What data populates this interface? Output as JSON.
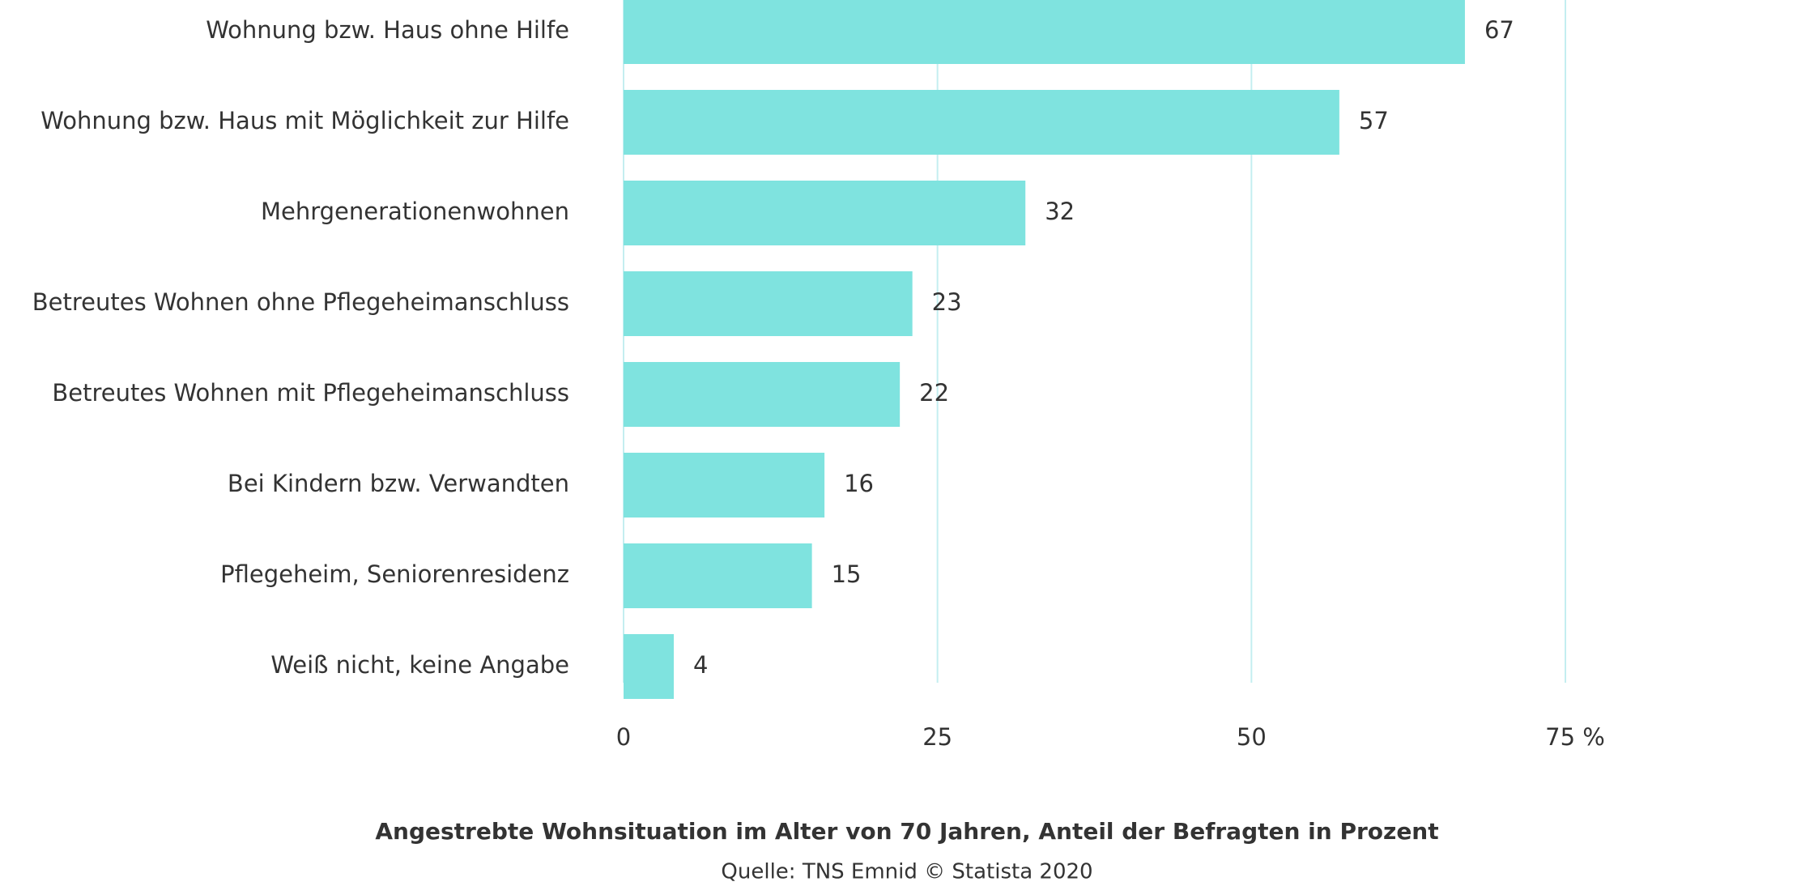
{
  "chart_data": {
    "type": "bar",
    "orientation": "horizontal",
    "title": "Angestrebte Wohnsituation im Alter von 70 Jahren, Anteil der Befragten in Prozent",
    "source": "Quelle: TNS Emnid © Statista 2020",
    "categories": [
      "Wohnung bzw. Haus ohne Hilfe",
      "Wohnung bzw. Haus mit Möglichkeit zur Hilfe",
      "Mehrgenerationenwohnen",
      "Betreutes Wohnen ohne Pflegeheimanschluss",
      "Betreutes Wohnen mit Pflegeheimanschluss",
      "Bei Kindern bzw. Verwandten",
      "Pflegeheim, Seniorenresidenz",
      "Weiß nicht, keine Angabe"
    ],
    "values": [
      67,
      57,
      32,
      23,
      22,
      16,
      15,
      4
    ],
    "color": "#7fe3df",
    "xlim": [
      0,
      75
    ],
    "xticks": [
      0,
      25,
      50,
      {
        "value": 75,
        "label": "75 %"
      }
    ],
    "grid": true
  }
}
